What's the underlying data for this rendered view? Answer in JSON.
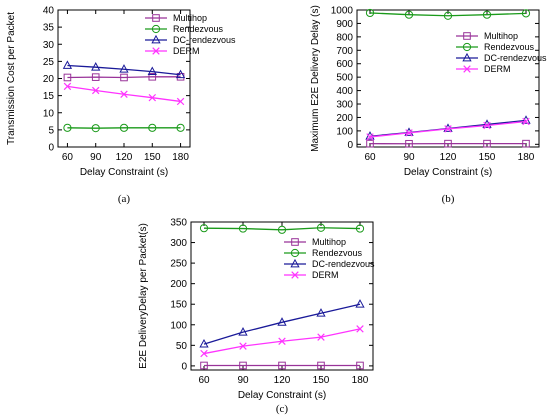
{
  "chart_data": [
    {
      "type": "line",
      "caption": "(a)",
      "xlabel": "Delay Constraint (s)",
      "ylabel": "Transmission Cost per Packet",
      "x": [
        60,
        90,
        120,
        150,
        180
      ],
      "xlim": [
        50,
        190
      ],
      "ylim": [
        0,
        40
      ],
      "yticks": [
        0,
        5,
        10,
        15,
        20,
        25,
        30,
        35,
        40
      ],
      "legend": "top-right",
      "series": [
        {
          "name": "Multihop",
          "color": "#993399",
          "marker": "square",
          "values": [
            20.3,
            20.4,
            20.3,
            20.5,
            20.5
          ]
        },
        {
          "name": "Rendezvous",
          "color": "#1a9a1a",
          "marker": "circle",
          "values": [
            5.6,
            5.5,
            5.6,
            5.6,
            5.6
          ]
        },
        {
          "name": "DC-rendezvous",
          "color": "#1a1a99",
          "marker": "triangle",
          "values": [
            23.8,
            23.3,
            22.7,
            22.0,
            21.1
          ]
        },
        {
          "name": "DERM",
          "color": "#ff33ff",
          "marker": "x",
          "values": [
            17.7,
            16.5,
            15.4,
            14.4,
            13.3
          ]
        }
      ]
    },
    {
      "type": "line",
      "caption": "(b)",
      "xlabel": "Delay Constraint (s)",
      "ylabel": "Maximum E2E Delivery Delay (s)",
      "x": [
        60,
        90,
        120,
        150,
        180
      ],
      "xlim": [
        50,
        190
      ],
      "ylim": [
        -20,
        1000
      ],
      "yticks": [
        0,
        100,
        200,
        300,
        400,
        500,
        600,
        700,
        800,
        900,
        1000
      ],
      "legend": "top-right",
      "series": [
        {
          "name": "Multihop",
          "color": "#993399",
          "marker": "square",
          "values": [
            5,
            4,
            5,
            5,
            5
          ]
        },
        {
          "name": "Rendezvous",
          "color": "#1a9a1a",
          "marker": "circle",
          "values": [
            978,
            965,
            957,
            965,
            975
          ]
        },
        {
          "name": "DC-rendezvous",
          "color": "#1a1a99",
          "marker": "triangle",
          "values": [
            60,
            88,
            118,
            148,
            178
          ]
        },
        {
          "name": "DERM",
          "color": "#ff33ff",
          "marker": "x",
          "values": [
            55,
            85,
            115,
            140,
            170
          ]
        }
      ]
    },
    {
      "type": "line",
      "caption": "(c)",
      "xlabel": "Delay Constraint (s)",
      "ylabel": "E2E DeliveryDelay per Packet(s)",
      "x": [
        60,
        90,
        120,
        150,
        180
      ],
      "xlim": [
        50,
        190
      ],
      "ylim": [
        -10,
        350
      ],
      "yticks": [
        0,
        50,
        100,
        150,
        200,
        250,
        300,
        350
      ],
      "legend": "top-right",
      "series": [
        {
          "name": "Multihop",
          "color": "#993399",
          "marker": "square",
          "values": [
            1,
            1,
            1,
            1,
            1
          ]
        },
        {
          "name": "Rendezvous",
          "color": "#1a9a1a",
          "marker": "circle",
          "values": [
            335,
            334,
            331,
            336,
            334
          ]
        },
        {
          "name": "DC-rendezvous",
          "color": "#1a1a99",
          "marker": "triangle",
          "values": [
            53,
            82,
            106,
            128,
            150
          ]
        },
        {
          "name": "DERM",
          "color": "#ff33ff",
          "marker": "x",
          "values": [
            30,
            48,
            60,
            70,
            90
          ]
        }
      ]
    }
  ]
}
